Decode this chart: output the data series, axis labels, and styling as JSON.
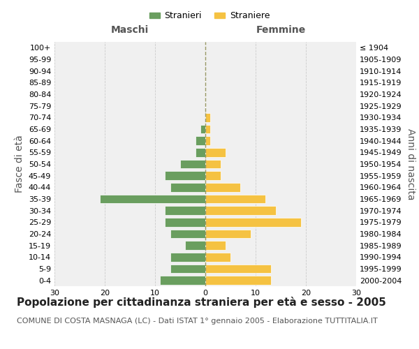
{
  "age_groups": [
    "0-4",
    "5-9",
    "10-14",
    "15-19",
    "20-24",
    "25-29",
    "30-34",
    "35-39",
    "40-44",
    "45-49",
    "50-54",
    "55-59",
    "60-64",
    "65-69",
    "70-74",
    "75-79",
    "80-84",
    "85-89",
    "90-94",
    "95-99",
    "100+"
  ],
  "birth_years": [
    "2000-2004",
    "1995-1999",
    "1990-1994",
    "1985-1989",
    "1980-1984",
    "1975-1979",
    "1970-1974",
    "1965-1969",
    "1960-1964",
    "1955-1959",
    "1950-1954",
    "1945-1949",
    "1940-1944",
    "1935-1939",
    "1930-1934",
    "1925-1929",
    "1920-1924",
    "1915-1919",
    "1910-1914",
    "1905-1909",
    "≤ 1904"
  ],
  "males": [
    9,
    7,
    7,
    4,
    7,
    8,
    8,
    21,
    7,
    8,
    5,
    2,
    2,
    1,
    0,
    0,
    0,
    0,
    0,
    0,
    0
  ],
  "females": [
    13,
    13,
    5,
    4,
    9,
    19,
    14,
    12,
    7,
    3,
    3,
    4,
    1,
    1,
    1,
    0,
    0,
    0,
    0,
    0,
    0
  ],
  "male_color": "#6a9e5f",
  "female_color": "#f5c242",
  "background_color": "#f0f0f0",
  "grid_color": "#cccccc",
  "bar_edge_color": "white",
  "title": "Popolazione per cittadinanza straniera per età e sesso - 2005",
  "subtitle": "COMUNE DI COSTA MASNAGA (LC) - Dati ISTAT 1° gennaio 2005 - Elaborazione TUTTITALIA.IT",
  "xlabel_left": "Maschi",
  "xlabel_right": "Femmine",
  "ylabel_left": "Fasce di età",
  "ylabel_right": "Anni di nascita",
  "xlim": 30,
  "legend_male": "Stranieri",
  "legend_female": "Straniere",
  "title_fontsize": 11,
  "subtitle_fontsize": 8,
  "tick_fontsize": 8,
  "label_fontsize": 10
}
